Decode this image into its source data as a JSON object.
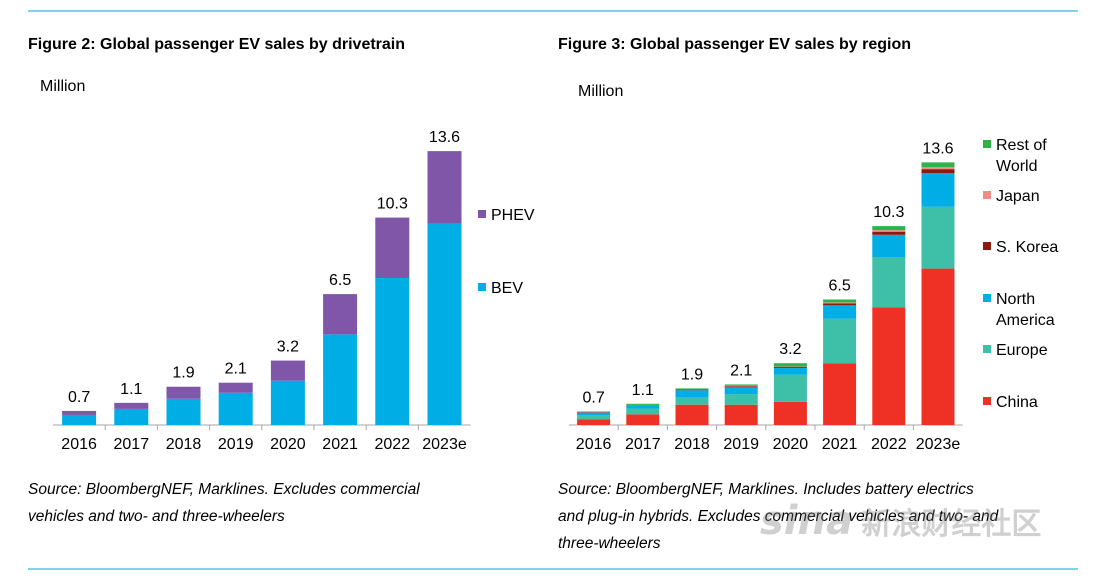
{
  "left": {
    "title": "Figure 2:  Global passenger EV sales by drivetrain",
    "unit": "Million",
    "source_line1": "Source: BloombergNEF, Marklines. Excludes commercial",
    "source_line2": "vehicles and two- and three-wheelers"
  },
  "right": {
    "title": "Figure 3:  Global passenger EV sales by region",
    "unit": "Million",
    "source_line1": "Source: BloombergNEF, Marklines. Includes battery electrics",
    "source_line2": "and plug-in hybrids. Excludes commercial vehicles and two- and",
    "source_line3": "three-wheelers"
  },
  "watermark": {
    "brand": "sina",
    "text": "新浪财经社区"
  },
  "colors": {
    "BEV": "#00aee6",
    "PHEV": "#7f56a8",
    "China": "#ee3124",
    "Europe": "#3dbfa8",
    "North America": "#00aee6",
    "S. Korea": "#8b1a10",
    "Japan": "#f08c84",
    "Rest of World": "#2fb24a",
    "rule": "#7fd3ea"
  },
  "chart_data": [
    {
      "type": "bar",
      "stacked": true,
      "categories": [
        "2016",
        "2017",
        "2018",
        "2019",
        "2020",
        "2021",
        "2022",
        "2023e"
      ],
      "totals": [
        "0.7",
        "1.1",
        "1.9",
        "2.1",
        "3.2",
        "6.5",
        "10.3",
        "13.6"
      ],
      "series": [
        {
          "name": "BEV",
          "values": [
            0.5,
            0.8,
            1.3,
            1.6,
            2.2,
            4.5,
            7.3,
            10.0
          ]
        },
        {
          "name": "PHEV",
          "values": [
            0.2,
            0.3,
            0.6,
            0.5,
            1.0,
            2.0,
            3.0,
            3.6
          ]
        }
      ],
      "legend_order": [
        "PHEV",
        "BEV"
      ],
      "legend_position": "right",
      "ylabel": "Million",
      "ylim": [
        0,
        14.5
      ],
      "grid": false
    },
    {
      "type": "bar",
      "stacked": true,
      "categories": [
        "2016",
        "2017",
        "2018",
        "2019",
        "2020",
        "2021",
        "2022",
        "2023e"
      ],
      "totals": [
        "0.7",
        "1.1",
        "1.9",
        "2.1",
        "3.2",
        "6.5",
        "10.3",
        "13.6"
      ],
      "series": [
        {
          "name": "China",
          "values": [
            0.3,
            0.55,
            1.05,
            1.05,
            1.2,
            3.2,
            6.1,
            8.1
          ]
        },
        {
          "name": "Europe",
          "values": [
            0.2,
            0.3,
            0.4,
            0.55,
            1.4,
            2.3,
            2.6,
            3.2
          ]
        },
        {
          "name": "North America",
          "values": [
            0.15,
            0.15,
            0.35,
            0.35,
            0.35,
            0.7,
            1.15,
            1.75
          ]
        },
        {
          "name": "S. Korea",
          "values": [
            0.01,
            0.02,
            0.04,
            0.05,
            0.05,
            0.1,
            0.16,
            0.2
          ]
        },
        {
          "name": "Japan",
          "values": [
            0.02,
            0.02,
            0.03,
            0.03,
            0.03,
            0.05,
            0.08,
            0.1
          ]
        },
        {
          "name": "Rest of World",
          "values": [
            0.02,
            0.06,
            0.03,
            0.07,
            0.17,
            0.15,
            0.21,
            0.25
          ]
        }
      ],
      "legend_order": [
        "Rest of World",
        "Japan",
        "S. Korea",
        "North America",
        "Europe",
        "China"
      ],
      "legend_labels": {
        "Rest of World": [
          "Rest of",
          "World"
        ],
        "Japan": [
          "Japan"
        ],
        "S. Korea": [
          "S. Korea"
        ],
        "North America": [
          "North",
          "America"
        ],
        "Europe": [
          "Europe"
        ],
        "China": [
          "China"
        ]
      },
      "legend_position": "right",
      "ylabel": "Million",
      "ylim": [
        0,
        14.5
      ],
      "grid": false
    }
  ]
}
